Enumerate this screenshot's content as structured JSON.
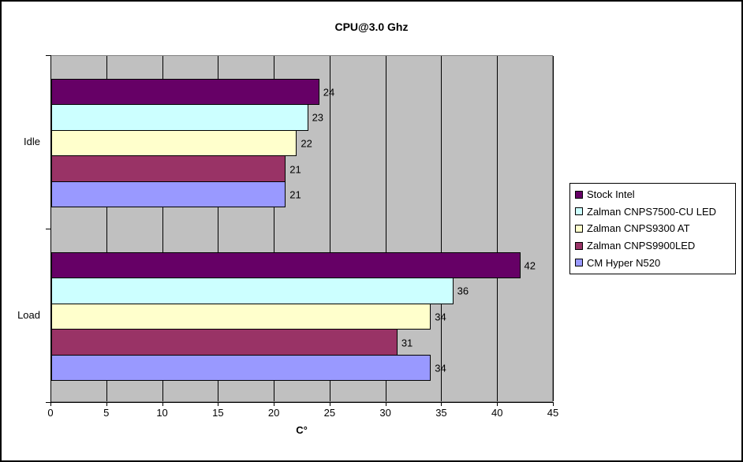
{
  "window": {
    "background": "#FFFFFF",
    "border_color": "#000000"
  },
  "chart_data": {
    "type": "bar",
    "orientation": "horizontal",
    "title": "CPU@3.0 Ghz",
    "xlabel": "C°",
    "categories": [
      "Idle",
      "Load"
    ],
    "series": [
      {
        "name": "Stock Intel",
        "color": "#660066",
        "values": [
          24,
          42
        ]
      },
      {
        "name": "Zalman CNPS7500-CU LED",
        "color": "#CCFFFF",
        "values": [
          23,
          36
        ]
      },
      {
        "name": "Zalman CNPS9300 AT",
        "color": "#FFFFCC",
        "values": [
          22,
          34
        ]
      },
      {
        "name": "Zalman CNPS9900LED",
        "color": "#993366",
        "values": [
          21,
          31
        ]
      },
      {
        "name": "CM Hyper N520",
        "color": "#9999FF",
        "values": [
          21,
          34
        ]
      }
    ],
    "xlim": [
      0,
      45
    ],
    "x_ticks": [
      0,
      5,
      10,
      15,
      20,
      25,
      30,
      35,
      40,
      45
    ],
    "grid": true,
    "gridline_color": "#000000",
    "plot_background": "#C0C0C0",
    "plot_border_color": "#808080",
    "data_labels": true,
    "legend_position": "right"
  }
}
